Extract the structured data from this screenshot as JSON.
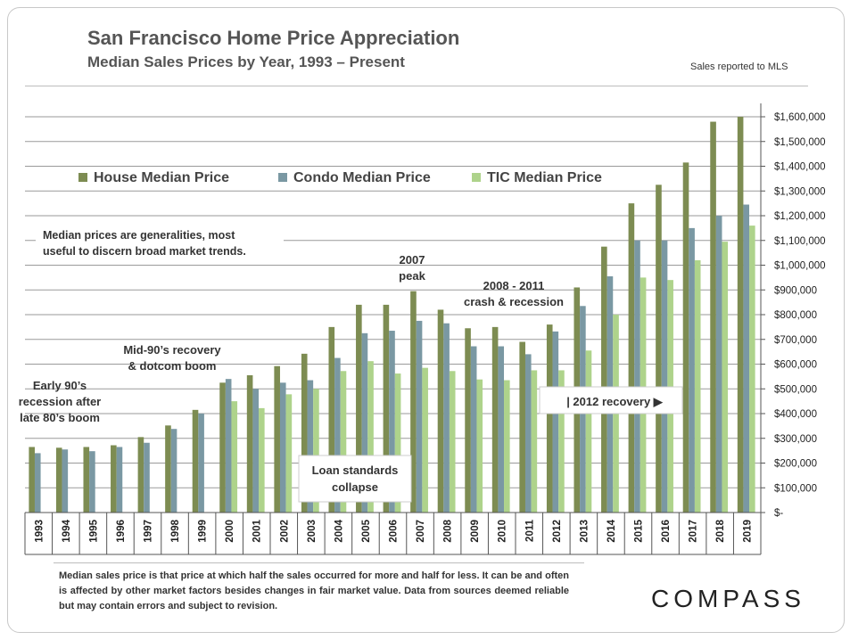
{
  "header": {
    "title": "San Francisco Home Price Appreciation",
    "subtitle": "Median Sales Prices by Year, 1993 – Present",
    "source_note": "Sales reported to MLS"
  },
  "chart_data": {
    "type": "bar",
    "categories": [
      "1993",
      "1994",
      "1995",
      "1996",
      "1997",
      "1998",
      "1999",
      "2000",
      "2001",
      "2002",
      "2003",
      "2004",
      "2005",
      "2006",
      "2007",
      "2008",
      "2009",
      "2010",
      "2011",
      "2012",
      "2013",
      "2014",
      "2015",
      "2016",
      "2017",
      "2018",
      "2019"
    ],
    "series": [
      {
        "name": "House Median Price",
        "color": "#7d8c52",
        "values": [
          265000,
          262000,
          265000,
          272000,
          305000,
          352000,
          415000,
          525000,
          555000,
          592000,
          642000,
          750000,
          840000,
          840000,
          895000,
          820000,
          745000,
          750000,
          690000,
          760000,
          910000,
          1075000,
          1250000,
          1325000,
          1415000,
          1580000,
          1600000
        ]
      },
      {
        "name": "Condo Median Price",
        "color": "#7a98a3",
        "values": [
          240000,
          255000,
          248000,
          265000,
          282000,
          338000,
          400000,
          540000,
          500000,
          525000,
          535000,
          625000,
          725000,
          735000,
          775000,
          765000,
          672000,
          672000,
          640000,
          732000,
          835000,
          955000,
          1100000,
          1100000,
          1150000,
          1200000,
          1245000
        ]
      },
      {
        "name": "TIC Median Price",
        "color": "#aed38b",
        "values": [
          null,
          null,
          null,
          null,
          null,
          null,
          null,
          450000,
          422000,
          478000,
          500000,
          572000,
          612000,
          562000,
          585000,
          572000,
          538000,
          535000,
          575000,
          575000,
          655000,
          800000,
          950000,
          940000,
          1020000,
          1095000,
          1160000
        ]
      }
    ],
    "ylim": [
      0,
      1600000
    ],
    "y_ticks": [
      "$-",
      "$100,000",
      "$200,000",
      "$300,000",
      "$400,000",
      "$500,000",
      "$600,000",
      "$700,000",
      "$800,000",
      "$900,000",
      "$1,000,000",
      "$1,100,000",
      "$1,200,000",
      "$1,300,000",
      "$1,400,000",
      "$1,500,000",
      "$1,600,000"
    ],
    "y_axis_side": "right",
    "grid": true,
    "legend_position": "top-left",
    "annotations": [
      {
        "id": "median-note",
        "lines": [
          "Median prices are generalities, most",
          "useful to discern broad market trends."
        ]
      },
      {
        "id": "peak-2007",
        "lines": [
          "2007",
          "peak"
        ]
      },
      {
        "id": "crash",
        "lines": [
          "2008 - 2011",
          "crash & recession"
        ]
      },
      {
        "id": "mid90s",
        "lines": [
          "Mid-90’s recovery",
          "& dotcom boom"
        ]
      },
      {
        "id": "early90s",
        "lines": [
          "Early 90’s",
          "recession after",
          "late 80’s boom"
        ]
      },
      {
        "id": "recovery",
        "lines": [
          "| 2012 recovery ▶"
        ]
      },
      {
        "id": "loan",
        "lines": [
          "Loan standards",
          "collapse"
        ]
      }
    ]
  },
  "footnote": "Median sales price is that price at which half the sales occurred for more and half for less. It can be and often is affected by other market factors besides changes in fair market value. Data from sources deemed reliable but may contain errors and subject to revision.",
  "logo": "COMPASS"
}
